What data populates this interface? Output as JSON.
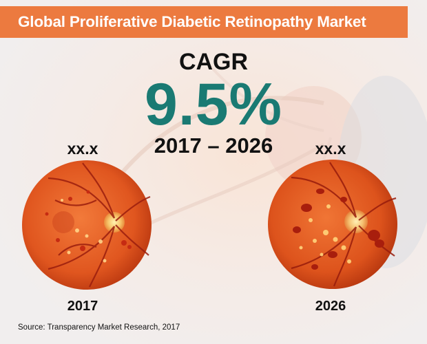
{
  "header": {
    "title": "Global Proliferative Diabetic Retinopathy Market"
  },
  "cagr": {
    "label": "CAGR",
    "value": "9.5%",
    "period": "2017 – 2026"
  },
  "left": {
    "value": "xx.x",
    "year": "2017"
  },
  "right": {
    "value": "xx.x",
    "year": "2026"
  },
  "source": "Source: Transparency Market Research, 2017",
  "colors": {
    "header": "#ec7a3f",
    "cagr_value": "#1a7a73",
    "retina": "#e8602a"
  }
}
